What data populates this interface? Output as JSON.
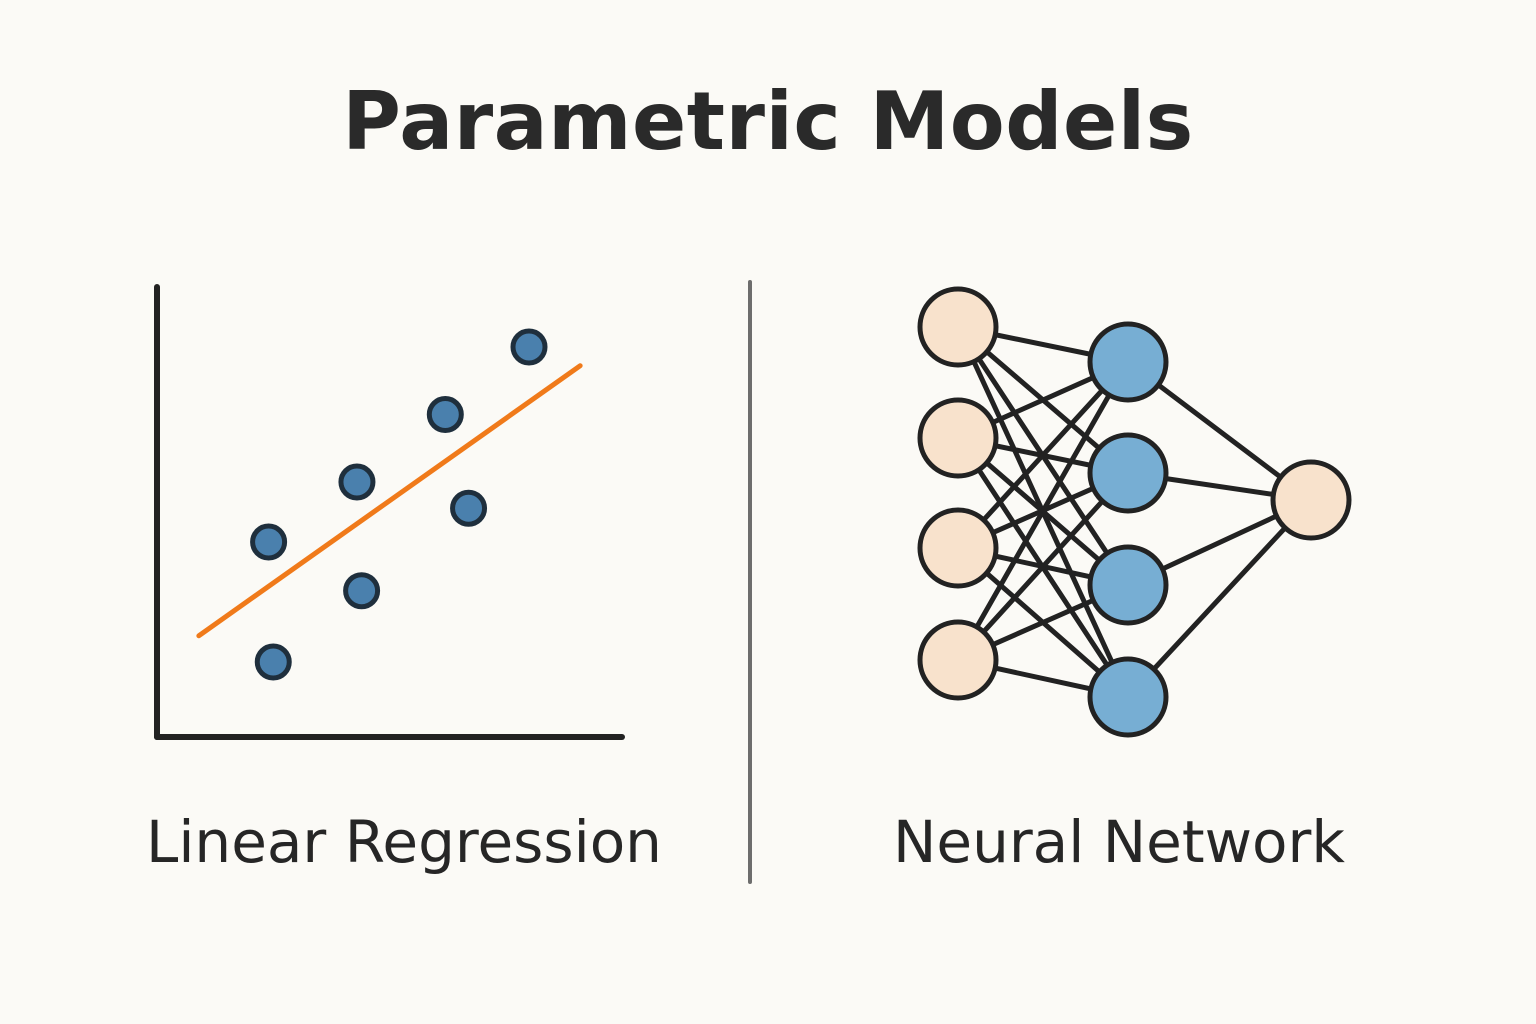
{
  "title": "Parametric Models",
  "left_panel": {
    "caption": "Linear Regression",
    "points": [
      {
        "x": 1.2,
        "y": 2.6
      },
      {
        "x": 1.25,
        "y": 1.0
      },
      {
        "x": 2.15,
        "y": 3.4
      },
      {
        "x": 2.2,
        "y": 1.95
      },
      {
        "x": 3.1,
        "y": 4.3
      },
      {
        "x": 3.35,
        "y": 3.05
      },
      {
        "x": 4.0,
        "y": 5.2
      }
    ],
    "fit_line": {
      "x1": 0.45,
      "y1": 1.35,
      "x2": 4.55,
      "y2": 4.95
    },
    "x_range": [
      0,
      5
    ],
    "y_range": [
      0,
      6
    ],
    "colors": {
      "axis": "#222222",
      "point_fill": "#4a80ad",
      "point_stroke": "#1f2f3d",
      "line": "#f07a1a"
    }
  },
  "right_panel": {
    "caption": "Neural Network",
    "layers": [
      4,
      4,
      1
    ],
    "colors": {
      "input_fill": "#f8e2cc",
      "hidden_fill": "#77aed3",
      "output_fill": "#f8e2cc",
      "stroke": "#222222",
      "edge": "#222222"
    }
  },
  "divider_color": "#6d6d6d"
}
